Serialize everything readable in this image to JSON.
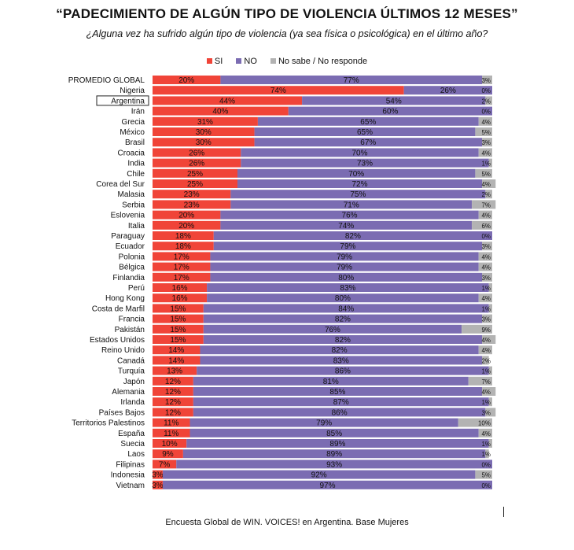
{
  "title": "“PADECIMIENTO DE ALGÚN TIPO DE VIOLENCIA ÚLTIMOS 12 MESES”",
  "subtitle": "¿Alguna vez ha sufrido algún tipo de violencia (ya sea física o psicológica) en el último año?",
  "footer": "Encuesta Global de WIN. VOICES! en Argentina. Base Mujeres",
  "legend": [
    {
      "label": "SI",
      "color": "#f04438"
    },
    {
      "label": "NO",
      "color": "#7b6cb2"
    },
    {
      "label": "No sabe / No responde",
      "color": "#b3b3b3"
    }
  ],
  "highlight": "Argentina",
  "chart_data": {
    "type": "bar",
    "orientation": "horizontal",
    "stacked": true,
    "xlim": [
      0,
      100
    ],
    "categories": [
      "PROMEDIO GLOBAL",
      "Nigeria",
      "Argentina",
      "Irán",
      "Grecia",
      "México",
      "Brasil",
      "Croacia",
      "India",
      "Chile",
      "Corea del Sur",
      "Malasia",
      "Serbia",
      "Eslovenia",
      "Italia",
      "Paraguay",
      "Ecuador",
      "Polonia",
      "Bélgica",
      "Finlandia",
      "Perú",
      "Hong Kong",
      "Costa de Marfil",
      "Francia",
      "Pakistán",
      "Estados Unidos",
      "Reino Unido",
      "Canadá",
      "Turquía",
      "Japón",
      "Alemania",
      "Irlanda",
      "Países Bajos",
      "Territorios Palestinos",
      "España",
      "Suecia",
      "Laos",
      "Filipinas",
      "Indonesia",
      "Vietnam"
    ],
    "series": [
      {
        "name": "SI",
        "color": "#f04438",
        "values": [
          20,
          74,
          44,
          40,
          31,
          30,
          30,
          26,
          26,
          25,
          25,
          23,
          23,
          20,
          20,
          18,
          18,
          17,
          17,
          17,
          16,
          16,
          15,
          15,
          15,
          15,
          14,
          14,
          13,
          12,
          12,
          12,
          12,
          11,
          11,
          10,
          9,
          7,
          3,
          3
        ]
      },
      {
        "name": "NO",
        "color": "#7b6cb2",
        "values": [
          77,
          26,
          54,
          60,
          65,
          65,
          67,
          70,
          73,
          70,
          72,
          75,
          71,
          76,
          74,
          82,
          79,
          79,
          79,
          80,
          83,
          80,
          84,
          82,
          76,
          82,
          82,
          83,
          86,
          81,
          85,
          87,
          86,
          79,
          85,
          89,
          89,
          93,
          92,
          97
        ]
      },
      {
        "name": "No sabe / No responde",
        "color": "#b3b3b3",
        "values": [
          3,
          0,
          2,
          0,
          4,
          5,
          3,
          4,
          1,
          5,
          4,
          2,
          7,
          4,
          6,
          0,
          3,
          4,
          4,
          3,
          1,
          4,
          1,
          3,
          9,
          4,
          4,
          2,
          1,
          7,
          4,
          1,
          3,
          10,
          4,
          1,
          1,
          0,
          5,
          0
        ]
      }
    ],
    "value_suffix": "%"
  }
}
